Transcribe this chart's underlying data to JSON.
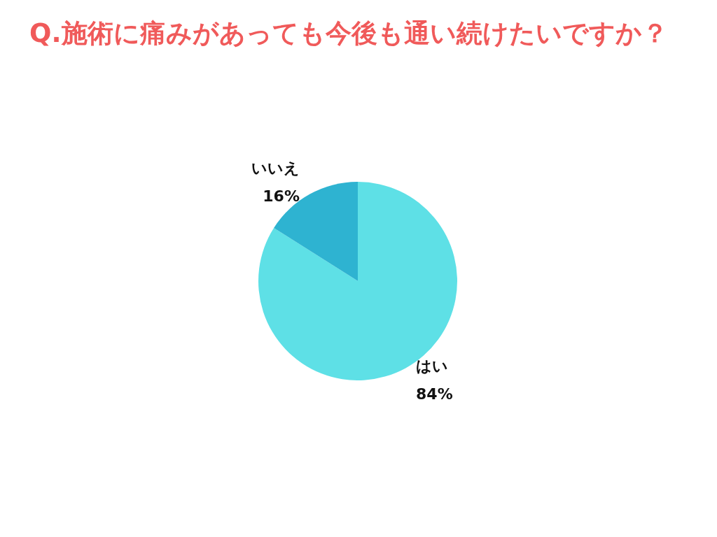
{
  "chart_data": {
    "type": "pie",
    "title": "Q.施術に痛みがあっても今後も通い続けたいですか？",
    "categories": [
      "はい",
      "いいえ"
    ],
    "values": [
      84,
      16
    ],
    "colors": [
      "#5ee0e6",
      "#2eb3d1"
    ],
    "value_labels": [
      "84%",
      "16%"
    ],
    "legend": false
  }
}
